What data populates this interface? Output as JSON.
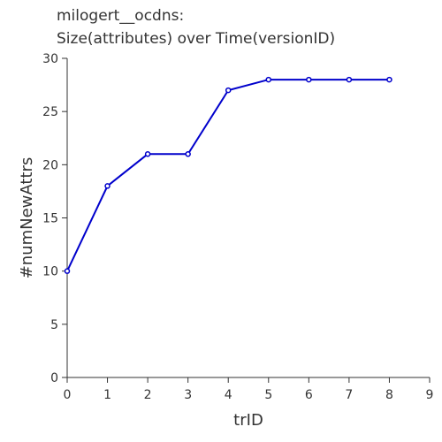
{
  "chart_data": {
    "type": "line",
    "title": [
      "milogert__ocdns:",
      "Size(attributes) over Time(versionID)"
    ],
    "xlabel": "trID",
    "ylabel": "#numNewAttrs",
    "xlim": [
      0,
      9
    ],
    "ylim": [
      0,
      30
    ],
    "xticks": [
      "0",
      "1",
      "2",
      "3",
      "4",
      "5",
      "6",
      "7",
      "8",
      "9"
    ],
    "yticks": [
      "0",
      "5",
      "10",
      "15",
      "20",
      "25",
      "30"
    ],
    "series": [
      {
        "name": "numNewAttrs",
        "color": "#0000cc",
        "x": [
          0,
          1,
          2,
          3,
          4,
          5,
          6,
          7,
          8
        ],
        "y": [
          10,
          18,
          21,
          21,
          27,
          28,
          28,
          28,
          28
        ]
      }
    ],
    "grid": false
  }
}
